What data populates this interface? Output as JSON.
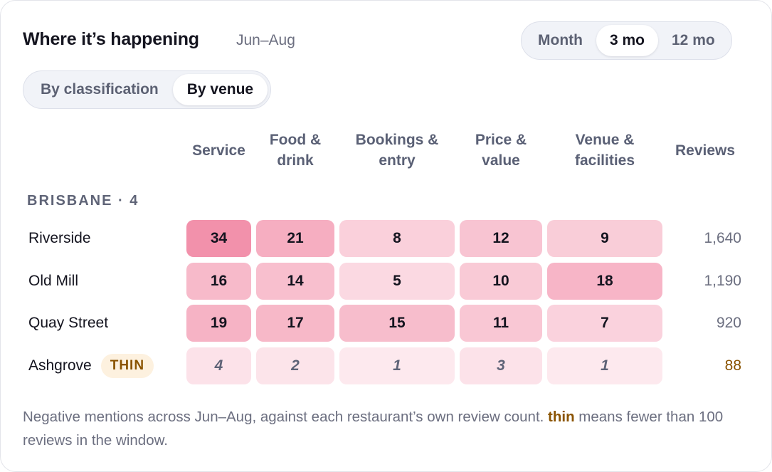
{
  "header": {
    "title": "Where it’s happening",
    "subtitle": "Jun–Aug"
  },
  "period_tabs": [
    {
      "label": "Month",
      "active": false
    },
    {
      "label": "3 mo",
      "active": true
    },
    {
      "label": "12 mo",
      "active": false
    }
  ],
  "view_tabs": [
    {
      "label": "By classification",
      "active": false
    },
    {
      "label": "By venue",
      "active": true
    }
  ],
  "columns": [
    "Service",
    "Food & drink",
    "Bookings & entry",
    "Price & value",
    "Venue & facilities"
  ],
  "reviews_header": "Reviews",
  "group": {
    "label": "BRISBANE · 4"
  },
  "rows": [
    {
      "name": "Riverside",
      "badge": "",
      "values": [
        "34",
        "21",
        "8",
        "12",
        "9"
      ],
      "reviews": "1,640"
    },
    {
      "name": "Old Mill",
      "badge": "",
      "values": [
        "16",
        "14",
        "5",
        "10",
        "18"
      ],
      "reviews": "1,190"
    },
    {
      "name": "Quay Street",
      "badge": "",
      "values": [
        "19",
        "17",
        "15",
        "11",
        "7"
      ],
      "reviews": "920"
    },
    {
      "name": "Ashgrove",
      "badge": "THIN",
      "values": [
        "4",
        "2",
        "1",
        "3",
        "1"
      ],
      "reviews": "88"
    }
  ],
  "footnote": {
    "before": "Negative mentions across Jun–Aug, against each restaurant’s own review count. ",
    "keyword": "thin",
    "after": " means fewer than 100 reviews in the window."
  },
  "colors": {
    "thin_text": "#8a5300",
    "thin_badge_bg": "#fdf1df",
    "heat_max": "#f291ab",
    "heat_min": "#fde9ee"
  }
}
